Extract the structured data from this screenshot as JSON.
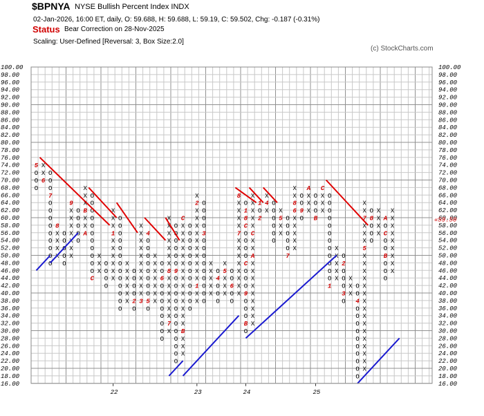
{
  "header": {
    "symbol": "$BPNYA",
    "description": "NYSE Bullish Percent Index  INDX",
    "quote": "02-Jan-2026, 16:00 ET, daily, O: 59.688, H: 59.688, L: 59.19, C: 59.502, Chg: -0.187 (-0.31%)",
    "status_label": "Status",
    "status_value": "Bear Correction on 28-Nov-2025",
    "scaling": "Scaling: User-Defined [Reversal: 3, Box Size:2.0]",
    "copyright": "(c) StockCharts.com"
  },
  "chart_data": {
    "type": "point-and-figure",
    "box_size": 2.0,
    "reversal": 3,
    "ylim": [
      16,
      100
    ],
    "y_ticks": [
      "16.00",
      "18.00",
      "20.00",
      "22.00",
      "24.00",
      "26.00",
      "28.00",
      "30.00",
      "32.00",
      "34.00",
      "36.00",
      "38.00",
      "40.00",
      "42.00",
      "44.00",
      "46.00",
      "48.00",
      "50.00",
      "52.00",
      "54.00",
      "56.00",
      "58.00",
      "60.00",
      "62.00",
      "64.00",
      "66.00",
      "68.00",
      "70.00",
      "72.00",
      "74.00",
      "76.00",
      "78.00",
      "80.00",
      "82.00",
      "84.00",
      "86.00",
      "88.00",
      "90.00",
      "92.00",
      "94.00",
      "96.00",
      "98.00",
      "100.00"
    ],
    "x_labels": [
      {
        "col": 11,
        "label": "22"
      },
      {
        "col": 23,
        "label": "23"
      },
      {
        "col": 30,
        "label": "24"
      },
      {
        "col": 40,
        "label": "25"
      }
    ],
    "last_price_label": "59.50",
    "last_price_left_label": "58.00",
    "columns": [
      {
        "type": "O",
        "low": 68,
        "high": 74,
        "markers": {
          "74": "5"
        }
      },
      {
        "type": "X",
        "low": 70,
        "high": 74,
        "markers": {
          "70": "6"
        }
      },
      {
        "type": "O",
        "low": 48,
        "high": 72,
        "markers": {
          "66": "7"
        }
      },
      {
        "type": "X",
        "low": 50,
        "high": 58,
        "markers": {
          "58": "8"
        }
      },
      {
        "type": "O",
        "low": 48,
        "high": 56,
        "markers": {}
      },
      {
        "type": "X",
        "low": 50,
        "high": 64,
        "markers": {
          "64": "9"
        }
      },
      {
        "type": "O",
        "low": 54,
        "high": 62,
        "markers": {}
      },
      {
        "type": "X",
        "low": 56,
        "high": 68,
        "markers": {
          "62": "B",
          "56": "A"
        }
      },
      {
        "type": "O",
        "low": 44,
        "high": 66,
        "markers": {
          "44": "C"
        }
      },
      {
        "type": "X",
        "low": 46,
        "high": 50,
        "markers": {}
      },
      {
        "type": "O",
        "low": 42,
        "high": 48,
        "markers": {}
      },
      {
        "type": "X",
        "low": 44,
        "high": 62,
        "markers": {
          "56": "1"
        }
      },
      {
        "type": "O",
        "low": 36,
        "high": 60,
        "markers": {}
      },
      {
        "type": "X",
        "low": 38,
        "high": 48,
        "markers": {}
      },
      {
        "type": "O",
        "low": 36,
        "high": 46,
        "markers": {
          "38": "2"
        }
      },
      {
        "type": "X",
        "low": 38,
        "high": 58,
        "markers": {
          "38": "3"
        }
      },
      {
        "type": "O",
        "low": 36,
        "high": 56,
        "markers": {
          "38": "5",
          "56": "4"
        }
      },
      {
        "type": "X",
        "low": 38,
        "high": 50,
        "markers": {}
      },
      {
        "type": "O",
        "low": 28,
        "high": 48,
        "markers": {
          "44": "6"
        }
      },
      {
        "type": "X",
        "low": 30,
        "high": 60,
        "markers": {
          "32": "7",
          "46": "8"
        }
      },
      {
        "type": "O",
        "low": 22,
        "high": 58,
        "markers": {
          "46": "9"
        }
      },
      {
        "type": "X",
        "low": 24,
        "high": 60,
        "markers": {
          "60": "C",
          "22": "A",
          "30": "B"
        }
      },
      {
        "type": "O",
        "low": 36,
        "high": 58,
        "markers": {}
      },
      {
        "type": "X",
        "low": 38,
        "high": 66,
        "markers": {
          "64": "2",
          "42": "1"
        }
      },
      {
        "type": "O",
        "low": 38,
        "high": 64,
        "markers": {
          "56": "3"
        }
      },
      {
        "type": "X",
        "low": 40,
        "high": 48,
        "markers": {}
      },
      {
        "type": "O",
        "low": 38,
        "high": 46,
        "markers": {
          "44": "4"
        }
      },
      {
        "type": "X",
        "low": 40,
        "high": 48,
        "markers": {
          "46": "5"
        }
      },
      {
        "type": "O",
        "low": 38,
        "high": 46,
        "markers": {
          "42": "6"
        }
      },
      {
        "type": "X",
        "low": 40,
        "high": 66,
        "markers": {
          "66": "8",
          "56": "7"
        }
      },
      {
        "type": "O",
        "low": 30,
        "high": 64,
        "markers": {
          "40": "9",
          "32": "B",
          "48": "C",
          "58": "C",
          "60": "8",
          "62": "1"
        }
      },
      {
        "type": "X",
        "low": 32,
        "high": 66,
        "markers": {
          "50": "A",
          "56": "C"
        }
      },
      {
        "type": "O",
        "low": 60,
        "high": 64,
        "markers": {
          "60": "2",
          "64": "1"
        }
      },
      {
        "type": "X",
        "low": 62,
        "high": 66,
        "markers": {
          "60": "3",
          "64": "4"
        }
      },
      {
        "type": "O",
        "low": 54,
        "high": 64,
        "markers": {}
      },
      {
        "type": "X",
        "low": 56,
        "high": 62,
        "markers": {
          "60": "5"
        }
      },
      {
        "type": "O",
        "low": 50,
        "high": 60,
        "markers": {
          "50": "7"
        }
      },
      {
        "type": "X",
        "low": 52,
        "high": 68,
        "markers": {
          "62": "6",
          "64": "8"
        }
      },
      {
        "type": "O",
        "low": 60,
        "high": 66,
        "markers": {
          "62": "9"
        }
      },
      {
        "type": "X",
        "low": 62,
        "high": 68,
        "markers": {
          "68": "A"
        }
      },
      {
        "type": "O",
        "low": 60,
        "high": 66,
        "markers": {
          "60": "B"
        }
      },
      {
        "type": "X",
        "low": 62,
        "high": 68,
        "markers": {
          "68": "C"
        }
      },
      {
        "type": "O",
        "low": 42,
        "high": 66,
        "markers": {
          "42": "1"
        }
      },
      {
        "type": "X",
        "low": 44,
        "high": 52,
        "markers": {}
      },
      {
        "type": "O",
        "low": 38,
        "high": 50,
        "markers": {
          "40": "3",
          "48": "2"
        }
      },
      {
        "type": "X",
        "low": 40,
        "high": 44,
        "markers": {}
      },
      {
        "type": "O",
        "low": 18,
        "high": 42,
        "markers": {
          "38": "4"
        }
      },
      {
        "type": "X",
        "low": 20,
        "high": 64,
        "markers": {
          "60": "7",
          "52": "5"
        }
      },
      {
        "type": "O",
        "low": 54,
        "high": 62,
        "markers": {
          "60": "8"
        }
      },
      {
        "type": "X",
        "low": 56,
        "high": 62,
        "markers": {}
      },
      {
        "type": "O",
        "low": 44,
        "high": 60,
        "markers": {
          "60": "A",
          "56": "C",
          "50": "B"
        }
      },
      {
        "type": "X",
        "low": 46,
        "high": 62,
        "markers": {}
      }
    ],
    "trendlines": [
      {
        "color": "red",
        "kind": "bearish resistance"
      },
      {
        "color": "blue",
        "kind": "bullish support"
      }
    ]
  },
  "colors": {
    "grid": "#c8c8c8",
    "grid_major": "#909090",
    "axis_text": "#000000",
    "month_marker": "#d00000",
    "bear_line": "#e00000",
    "bull_line": "#1a1ad0",
    "status": "#d00000"
  }
}
